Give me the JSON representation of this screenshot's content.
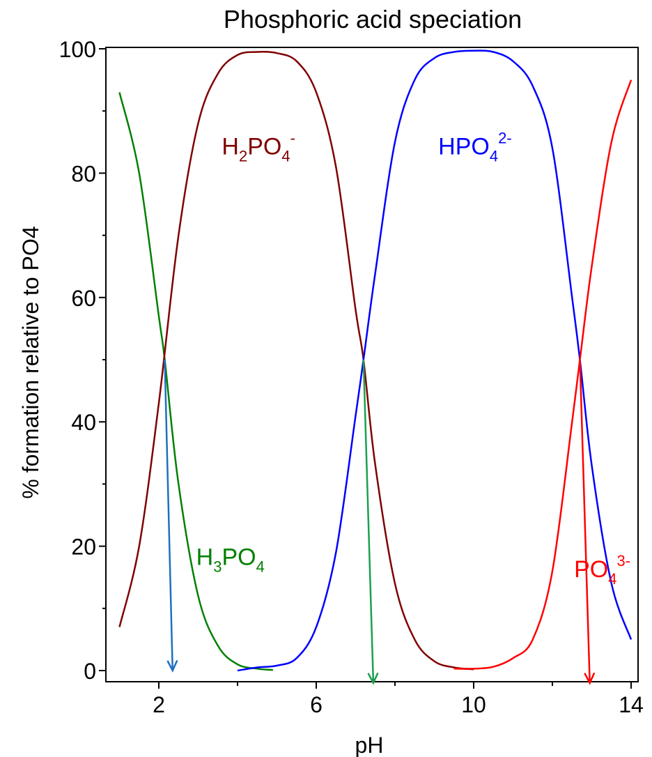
{
  "chart_data": {
    "type": "line",
    "title": "Phosphoric acid speciation",
    "xlabel": "pH",
    "ylabel": "% formation relative to PO4",
    "xlim": [
      1,
      14
    ],
    "ylim": [
      0,
      100
    ],
    "x_ticks": [
      "2",
      "6",
      "10",
      "14"
    ],
    "y_ticks": [
      "0",
      "20",
      "40",
      "60",
      "80",
      "100"
    ],
    "grid": false,
    "legend": "none",
    "series": [
      {
        "name": "H3PO4",
        "color": "#008000",
        "x": [
          1.0,
          1.5,
          2.0,
          2.15,
          2.5,
          3.0,
          3.5,
          4.0,
          4.5,
          4.9
        ],
        "y": [
          93,
          80,
          57,
          50,
          30,
          12,
          4,
          1,
          0.3,
          0.1
        ]
      },
      {
        "name": "H2PO4-",
        "color": "#800000",
        "x": [
          1.0,
          1.5,
          2.0,
          2.5,
          3.0,
          3.5,
          4.0,
          4.5,
          5.0,
          5.5,
          6.0,
          6.5,
          7.0,
          7.2,
          7.5,
          8.0,
          8.5,
          9.0,
          9.5,
          10.0
        ],
        "y": [
          7,
          20,
          43,
          70,
          88,
          96,
          99,
          99.5,
          99.3,
          98,
          93,
          81,
          58,
          50,
          33,
          14,
          5,
          1.5,
          0.5,
          0.2
        ]
      },
      {
        "name": "HPO4 2-",
        "color": "#0000ff",
        "x": [
          4.0,
          4.5,
          5.0,
          5.5,
          6.0,
          6.5,
          7.0,
          7.2,
          7.5,
          8.0,
          8.5,
          9.0,
          9.5,
          10.0,
          10.5,
          11.0,
          11.5,
          12.0,
          12.5,
          12.7,
          13.0,
          13.5,
          14.0
        ],
        "y": [
          0,
          0.5,
          0.8,
          2,
          7,
          19,
          41,
          50,
          64,
          85,
          95,
          98.5,
          99.5,
          99.7,
          99.5,
          98,
          94,
          84,
          60,
          50,
          33,
          14,
          5
        ]
      },
      {
        "name": "PO4 3-",
        "color": "#ff0000",
        "x": [
          9.5,
          10.0,
          10.5,
          11.0,
          11.5,
          12.0,
          12.5,
          12.7,
          13.0,
          13.5,
          14.0
        ],
        "y": [
          0.3,
          0.3,
          0.6,
          2,
          5,
          16,
          40,
          50,
          65,
          85,
          95
        ]
      }
    ],
    "species_labels": [
      {
        "main1": "H",
        "sub1": "2",
        "main2": "PO",
        "sub2": "4",
        "sup": "-",
        "color": "#800000",
        "x": 3.6,
        "y": 83
      },
      {
        "main1": "HPO",
        "sub1": "4",
        "main2": "",
        "sub2": "",
        "sup": "2-",
        "color": "#0000ff",
        "x": 9.1,
        "y": 83
      },
      {
        "main1": "H",
        "sub1": "3",
        "main2": "PO",
        "sub2": "4",
        "sup": "",
        "color": "#008000",
        "x": 2.95,
        "y": 17
      },
      {
        "main1": "PO",
        "sub1": "4",
        "main2": "",
        "sub2": "",
        "sup": "3-",
        "color": "#ff0000",
        "x": 12.55,
        "y": 15
      }
    ],
    "annotations": [
      {
        "x1": 2.15,
        "y1": 50,
        "x2": 2.35,
        "y2": 0,
        "color": "#1f6fbf"
      },
      {
        "x1": 7.2,
        "y1": 50,
        "x2": 7.45,
        "y2": -2,
        "color": "#1aa050"
      },
      {
        "x1": 12.7,
        "y1": 50,
        "x2": 12.95,
        "y2": -2,
        "color": "#ff0000"
      }
    ]
  }
}
